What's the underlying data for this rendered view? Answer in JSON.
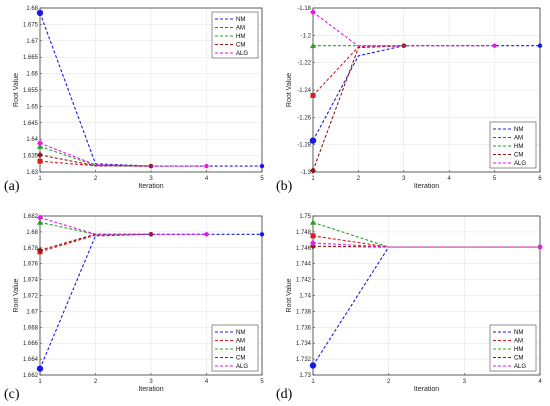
{
  "chart_data": [
    {
      "type": "line",
      "panel_label": "(a)",
      "xlabel": "Iteration",
      "ylabel": "Root Value",
      "xlim": [
        1,
        5
      ],
      "ylim": [
        1.63,
        1.68
      ],
      "xticks": [
        "1",
        "2",
        "3",
        "4",
        "5"
      ],
      "yticks": [
        "1.63",
        "1.635",
        "1.64",
        "1.645",
        "1.65",
        "1.655",
        "1.66",
        "1.665",
        "1.67",
        "1.675",
        "1.68"
      ],
      "grid": true,
      "legend_position": "top-right",
      "series": [
        {
          "name": "NM",
          "color": "#1a1ae6",
          "marker": "circle",
          "x": [
            1,
            2,
            3,
            4,
            5
          ],
          "y": [
            1.6785,
            1.6325,
            1.6318,
            1.6318,
            1.6318
          ]
        },
        {
          "name": "AM",
          "color": "#e01a1a",
          "marker": "square",
          "x": [
            1,
            2,
            3
          ],
          "y": [
            1.6333,
            1.6319,
            1.6318
          ]
        },
        {
          "name": "HM",
          "color": "#2aa02a",
          "marker": "triangle",
          "x": [
            1,
            2,
            3
          ],
          "y": [
            1.6378,
            1.632,
            1.6318
          ]
        },
        {
          "name": "CM",
          "color": "#8b1a1a",
          "marker": "diamond",
          "x": [
            1,
            2,
            3
          ],
          "y": [
            1.6352,
            1.6319,
            1.6318
          ]
        },
        {
          "name": "ALG",
          "color": "#e61ae6",
          "marker": "diamond",
          "x": [
            1,
            2,
            3,
            4
          ],
          "y": [
            1.6388,
            1.6322,
            1.6318,
            1.6318
          ]
        }
      ]
    },
    {
      "type": "line",
      "panel_label": "(b)",
      "xlabel": "Iteration",
      "ylabel": "Root Value",
      "xlim": [
        1,
        6
      ],
      "ylim": [
        -1.3,
        -1.18
      ],
      "xticks": [
        "1",
        "2",
        "3",
        "4",
        "5",
        "6"
      ],
      "yticks": [
        "-1.3",
        "-1.28",
        "-1.26",
        "-1.24",
        "-1.22",
        "-1.2",
        "-1.18"
      ],
      "grid": true,
      "legend_position": "bottom-right",
      "series": [
        {
          "name": "NM",
          "color": "#1a1ae6",
          "marker": "circle",
          "x": [
            1,
            2,
            3,
            4,
            5,
            6
          ],
          "y": [
            -1.277,
            -1.215,
            -1.2076,
            -1.2076,
            -1.2076,
            -1.2076
          ]
        },
        {
          "name": "AM",
          "color": "#e01a1a",
          "marker": "square",
          "x": [
            1,
            2,
            3
          ],
          "y": [
            -1.244,
            -1.2085,
            -1.2076
          ]
        },
        {
          "name": "HM",
          "color": "#2aa02a",
          "marker": "triangle",
          "x": [
            1,
            2,
            3
          ],
          "y": [
            -1.2076,
            -1.2076,
            -1.2076
          ]
        },
        {
          "name": "CM",
          "color": "#8b1a1a",
          "marker": "diamond",
          "x": [
            1,
            2,
            3
          ],
          "y": [
            -1.299,
            -1.209,
            -1.2076
          ]
        },
        {
          "name": "ALG",
          "color": "#e61ae6",
          "marker": "diamond",
          "x": [
            1,
            2,
            3,
            4,
            5
          ],
          "y": [
            -1.183,
            -1.208,
            -1.2076,
            -1.2076,
            -1.2076
          ]
        }
      ]
    },
    {
      "type": "line",
      "panel_label": "(c)",
      "xlabel": "Iteration",
      "ylabel": "Root Value",
      "xlim": [
        1,
        5
      ],
      "ylim": [
        1.662,
        1.682
      ],
      "xticks": [
        "1",
        "2",
        "3",
        "4",
        "5"
      ],
      "yticks": [
        "1.662",
        "1.664",
        "1.666",
        "1.668",
        "1.67",
        "1.672",
        "1.674",
        "1.676",
        "1.678",
        "1.68",
        "1.682"
      ],
      "grid": true,
      "legend_position": "bottom-right",
      "series": [
        {
          "name": "NM",
          "color": "#1a1ae6",
          "marker": "circle",
          "x": [
            1,
            2,
            3,
            4,
            5
          ],
          "y": [
            1.6628,
            1.6795,
            1.6797,
            1.6797,
            1.6797
          ]
        },
        {
          "name": "AM",
          "color": "#e01a1a",
          "marker": "square",
          "x": [
            1,
            2,
            3
          ],
          "y": [
            1.6775,
            1.6796,
            1.6797
          ]
        },
        {
          "name": "HM",
          "color": "#2aa02a",
          "marker": "triangle",
          "x": [
            1,
            2,
            3
          ],
          "y": [
            1.6812,
            1.6797,
            1.6797
          ]
        },
        {
          "name": "CM",
          "color": "#8b1a1a",
          "marker": "diamond",
          "x": [
            1,
            2,
            3
          ],
          "y": [
            1.6777,
            1.6797,
            1.6797
          ]
        },
        {
          "name": "ALG",
          "color": "#e61ae6",
          "marker": "diamond",
          "x": [
            1,
            2,
            3,
            4
          ],
          "y": [
            1.6818,
            1.6797,
            1.6797,
            1.6797
          ]
        }
      ]
    },
    {
      "type": "line",
      "panel_label": "(d)",
      "xlabel": "Iteration",
      "ylabel": "Root Value",
      "xlim": [
        1,
        4
      ],
      "ylim": [
        1.73,
        1.75
      ],
      "xticks": [
        "1",
        "2",
        "3",
        "4"
      ],
      "yticks": [
        "1.73",
        "1.732",
        "1.734",
        "1.736",
        "1.738",
        "1.74",
        "1.742",
        "1.744",
        "1.746",
        "1.748",
        "1.75"
      ],
      "grid": true,
      "legend_position": "bottom-right",
      "series": [
        {
          "name": "NM",
          "color": "#1a1ae6",
          "marker": "circle",
          "x": [
            1,
            2,
            3,
            4
          ],
          "y": [
            1.7312,
            1.7461,
            1.7461,
            1.7461
          ]
        },
        {
          "name": "AM",
          "color": "#e01a1a",
          "marker": "square",
          "x": [
            1,
            2,
            3,
            4
          ],
          "y": [
            1.7475,
            1.7461,
            1.7461,
            1.7461
          ]
        },
        {
          "name": "HM",
          "color": "#2aa02a",
          "marker": "triangle",
          "x": [
            1,
            2,
            3,
            4
          ],
          "y": [
            1.7492,
            1.7461,
            1.7461,
            1.7461
          ]
        },
        {
          "name": "CM",
          "color": "#8b1a1a",
          "marker": "diamond",
          "x": [
            1,
            2,
            3,
            4
          ],
          "y": [
            1.7462,
            1.7461,
            1.7461,
            1.7461
          ]
        },
        {
          "name": "ALG",
          "color": "#e61ae6",
          "marker": "diamond",
          "x": [
            1,
            2,
            3,
            4
          ],
          "y": [
            1.7466,
            1.7461,
            1.7461,
            1.7461
          ]
        }
      ]
    }
  ]
}
